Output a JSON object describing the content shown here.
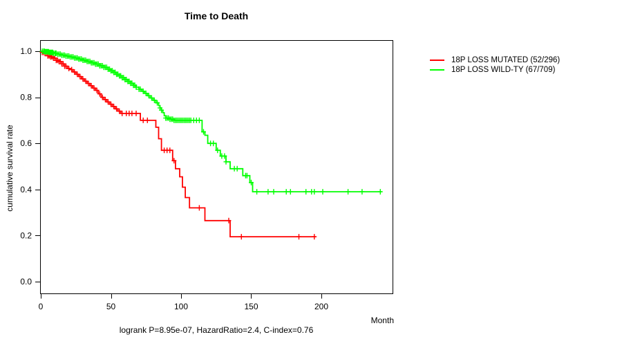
{
  "chart_data": {
    "type": "line",
    "subtype": "kaplan-meier-step",
    "title": "Time to Death",
    "xlabel": "Month",
    "ylabel": "cumulative survival rate",
    "annotation": "logrank P=8.95e-07, HazardRatio=2.4, C-index=0.76",
    "xlim": [
      0,
      251
    ],
    "ylim": [
      0,
      1.04
    ],
    "x_ticks": [
      0,
      50,
      100,
      150,
      200
    ],
    "y_ticks": [
      0,
      0.2,
      0.4,
      0.6,
      0.8,
      1.0
    ],
    "grid": false,
    "legend_position": "right-outside",
    "series": [
      {
        "name": "18P LOSS MUTATED (52/296)",
        "color": "#ff0000",
        "end_month": 196,
        "steps": [
          [
            0,
            1
          ],
          [
            1,
            0.995
          ],
          [
            3,
            0.99
          ],
          [
            5,
            0.98
          ],
          [
            7,
            0.975
          ],
          [
            9,
            0.97
          ],
          [
            11,
            0.96
          ],
          [
            13,
            0.955
          ],
          [
            15,
            0.945
          ],
          [
            17,
            0.935
          ],
          [
            19,
            0.925
          ],
          [
            21,
            0.92
          ],
          [
            23,
            0.91
          ],
          [
            25,
            0.9
          ],
          [
            27,
            0.89
          ],
          [
            29,
            0.88
          ],
          [
            31,
            0.87
          ],
          [
            33,
            0.86
          ],
          [
            35,
            0.85
          ],
          [
            37,
            0.84
          ],
          [
            39,
            0.83
          ],
          [
            41,
            0.815
          ],
          [
            43,
            0.8
          ],
          [
            45,
            0.79
          ],
          [
            47,
            0.78
          ],
          [
            49,
            0.77
          ],
          [
            51,
            0.76
          ],
          [
            53,
            0.75
          ],
          [
            55,
            0.74
          ],
          [
            57,
            0.73
          ],
          [
            71,
            0.7
          ],
          [
            82,
            0.67
          ],
          [
            84,
            0.62
          ],
          [
            86,
            0.57
          ],
          [
            94,
            0.525
          ],
          [
            96,
            0.49
          ],
          [
            99,
            0.455
          ],
          [
            101,
            0.41
          ],
          [
            103,
            0.365
          ],
          [
            106,
            0.32
          ],
          [
            117,
            0.265
          ],
          [
            135,
            0.195
          ]
        ],
        "censor_months": [
          1,
          2,
          3,
          4,
          5,
          6,
          7,
          8,
          9,
          10,
          11,
          12,
          13,
          14,
          15,
          16,
          17,
          18,
          20,
          22,
          24,
          26,
          28,
          30,
          32,
          34,
          36,
          38,
          40,
          42,
          44,
          46,
          48,
          50,
          52,
          54,
          56,
          58,
          61,
          63,
          65,
          68,
          73,
          76,
          88,
          90,
          92,
          95,
          113,
          134,
          143,
          184,
          195
        ]
      },
      {
        "name": "18P LOSS WILD-TY (67/709)",
        "color": "#00ff00",
        "end_month": 243,
        "steps": [
          [
            0,
            1
          ],
          [
            3,
            0.998
          ],
          [
            6,
            0.995
          ],
          [
            9,
            0.991
          ],
          [
            12,
            0.987
          ],
          [
            15,
            0.983
          ],
          [
            18,
            0.979
          ],
          [
            21,
            0.975
          ],
          [
            24,
            0.971
          ],
          [
            27,
            0.966
          ],
          [
            30,
            0.961
          ],
          [
            33,
            0.956
          ],
          [
            36,
            0.95
          ],
          [
            39,
            0.944
          ],
          [
            42,
            0.937
          ],
          [
            45,
            0.93
          ],
          [
            48,
            0.922
          ],
          [
            50,
            0.915
          ],
          [
            52,
            0.908
          ],
          [
            54,
            0.9
          ],
          [
            56,
            0.893
          ],
          [
            58,
            0.885
          ],
          [
            60,
            0.877
          ],
          [
            62,
            0.869
          ],
          [
            64,
            0.861
          ],
          [
            66,
            0.852
          ],
          [
            68,
            0.844
          ],
          [
            70,
            0.835
          ],
          [
            72,
            0.826
          ],
          [
            74,
            0.817
          ],
          [
            76,
            0.807
          ],
          [
            78,
            0.797
          ],
          [
            80,
            0.787
          ],
          [
            82,
            0.776
          ],
          [
            84,
            0.764
          ],
          [
            85,
            0.754
          ],
          [
            86,
            0.744
          ],
          [
            87,
            0.733
          ],
          [
            88,
            0.72
          ],
          [
            89,
            0.71
          ],
          [
            92,
            0.705
          ],
          [
            95,
            0.7
          ],
          [
            115,
            0.65
          ],
          [
            117,
            0.635
          ],
          [
            119,
            0.6
          ],
          [
            125,
            0.57
          ],
          [
            128,
            0.545
          ],
          [
            132,
            0.52
          ],
          [
            135,
            0.49
          ],
          [
            144,
            0.46
          ],
          [
            149,
            0.43
          ],
          [
            151,
            0.39
          ]
        ],
        "censor_months": [
          1,
          2,
          2.5,
          3,
          3.5,
          4,
          4.5,
          5,
          5.5,
          6,
          6.5,
          7,
          7.5,
          8,
          8.5,
          9,
          10,
          10.5,
          11,
          12,
          13,
          14,
          15,
          16,
          17,
          18,
          19,
          20,
          21,
          22,
          23,
          24,
          25,
          26,
          27,
          28,
          29,
          30,
          31,
          32,
          33,
          34,
          35,
          36,
          37,
          38,
          39,
          40,
          41,
          42,
          43,
          44,
          45,
          46,
          47,
          48,
          49,
          50,
          51,
          52,
          53,
          54,
          55,
          56,
          57,
          58,
          59,
          60,
          61,
          62,
          63,
          64,
          65,
          66,
          67,
          68,
          70,
          71,
          73,
          75,
          77,
          79,
          81,
          83,
          85,
          86,
          89,
          90,
          91,
          92,
          93,
          94,
          95,
          96,
          97,
          98,
          99,
          100,
          101,
          102,
          103,
          104,
          105,
          106,
          107,
          109,
          111,
          113,
          116,
          121,
          123,
          126,
          129,
          131,
          132,
          138,
          140,
          146,
          147,
          150,
          154,
          162,
          166,
          175,
          178,
          189,
          193,
          195,
          201,
          219,
          229,
          242
        ]
      }
    ]
  }
}
